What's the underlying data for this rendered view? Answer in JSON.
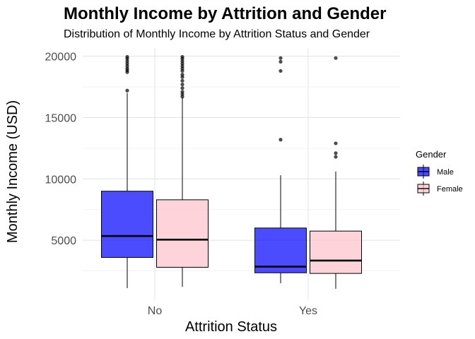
{
  "chart_data": {
    "type": "boxplot",
    "title": "Monthly Income by Attrition and Gender",
    "subtitle": "Distribution of Monthly Income by Attrition Status and Gender",
    "xlabel": "Attrition Status",
    "ylabel": "Monthly Income (USD)",
    "categories": [
      "No",
      "Yes"
    ],
    "ylim": [
      0,
      21000
    ],
    "y_ticks": [
      5000,
      10000,
      15000,
      20000
    ],
    "y_tick_labels": [
      "5000",
      "10000",
      "15000",
      "20000"
    ],
    "grid": true,
    "legend": {
      "title": "Gender",
      "position": "right"
    },
    "series": [
      {
        "name": "Male",
        "color": "#0000ff",
        "boxes": [
          {
            "category": "No",
            "min": 1100,
            "q1": 3600,
            "median": 5350,
            "q3": 9000,
            "max": 17000,
            "outliers": [
              17200,
              18700,
              18850,
              19000,
              19200,
              19400,
              19600,
              19800,
              19950
            ]
          },
          {
            "category": "Yes",
            "min": 1500,
            "q1": 2350,
            "median": 2850,
            "q3": 6000,
            "max": 10300,
            "outliers": [
              13200,
              18800,
              19550,
              19850
            ]
          }
        ]
      },
      {
        "name": "Female",
        "color": "#ffc0cb",
        "boxes": [
          {
            "category": "No",
            "min": 1200,
            "q1": 2800,
            "median": 5050,
            "q3": 8300,
            "max": 16600,
            "outliers": [
              16700,
              16900,
              17100,
              17400,
              17700,
              18000,
              18300,
              18500,
              18800,
              19000,
              19200,
              19400,
              19600,
              19800,
              19950
            ]
          },
          {
            "category": "Yes",
            "min": 1050,
            "q1": 2300,
            "median": 3350,
            "q3": 5750,
            "max": 10600,
            "outliers": [
              11800,
              12100,
              12900,
              19850
            ]
          }
        ]
      }
    ]
  }
}
